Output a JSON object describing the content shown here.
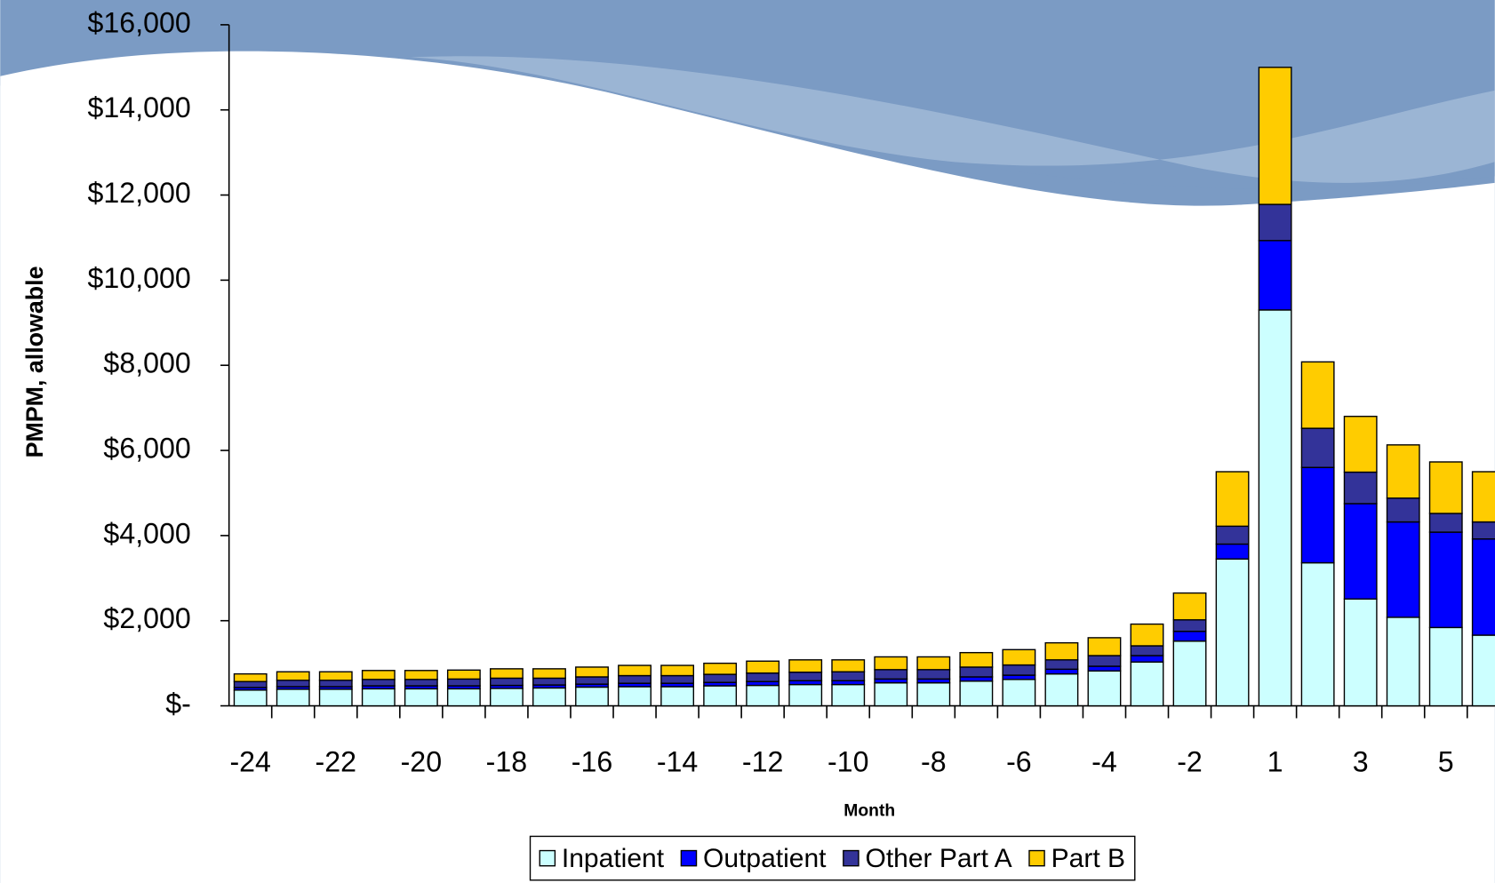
{
  "chart_data": {
    "type": "stacked-bar",
    "y_label": "PMPM, allowable",
    "x_label": "Month",
    "categories": [
      "-24",
      null,
      "-22",
      null,
      "-20",
      null,
      "-18",
      null,
      "-16",
      null,
      "-14",
      null,
      "-12",
      null,
      "-10",
      null,
      "-8",
      null,
      "-6",
      null,
      "-4",
      null,
      "-2",
      null,
      "1",
      null,
      "3",
      null,
      "5",
      null
    ],
    "series": [
      {
        "name": "Inpatient",
        "color": "#ccffff",
        "values": [
          370,
          390,
          390,
          400,
          400,
          400,
          410,
          420,
          440,
          450,
          450,
          470,
          480,
          500,
          500,
          540,
          540,
          580,
          620,
          750,
          820,
          1030,
          1520,
          3450,
          9300,
          3360,
          2510,
          2080,
          1840,
          1660
        ]
      },
      {
        "name": "Outpatient",
        "color": "#0000ff",
        "values": [
          60,
          60,
          60,
          70,
          70,
          70,
          70,
          70,
          70,
          80,
          80,
          80,
          90,
          90,
          90,
          90,
          90,
          100,
          100,
          110,
          110,
          150,
          230,
          350,
          1630,
          2240,
          2240,
          2240,
          2240,
          2260
        ]
      },
      {
        "name": "Other Part A",
        "color": "#333399",
        "values": [
          140,
          150,
          150,
          150,
          150,
          160,
          170,
          160,
          170,
          180,
          180,
          190,
          200,
          200,
          210,
          220,
          220,
          230,
          240,
          220,
          250,
          230,
          270,
          420,
          850,
          920,
          740,
          560,
          440,
          400
        ]
      },
      {
        "name": "Part B",
        "color": "#ffcc00",
        "values": [
          180,
          200,
          200,
          210,
          210,
          210,
          220,
          220,
          230,
          240,
          240,
          260,
          280,
          290,
          280,
          300,
          300,
          340,
          360,
          400,
          420,
          510,
          630,
          1280,
          3220,
          1560,
          1310,
          1250,
          1210,
          1180
        ]
      }
    ],
    "ylim": [
      0,
      16000
    ],
    "yticks": [
      {
        "value": 0,
        "label": "$-"
      },
      {
        "value": 2000,
        "label": "$2,000"
      },
      {
        "value": 4000,
        "label": "$4,000"
      },
      {
        "value": 6000,
        "label": "$6,000"
      },
      {
        "value": 8000,
        "label": "$8,000"
      },
      {
        "value": 10000,
        "label": "$10,000"
      },
      {
        "value": 12000,
        "label": "$12,000"
      },
      {
        "value": 14000,
        "label": "$14,000"
      },
      {
        "value": 16000,
        "label": "$16,000"
      }
    ],
    "legend": "bottom"
  }
}
